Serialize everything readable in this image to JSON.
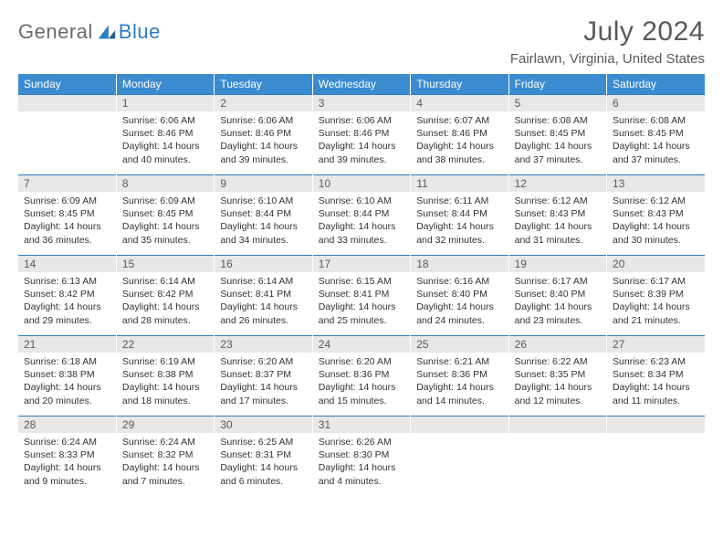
{
  "logo": {
    "general": "General",
    "blue": "Blue"
  },
  "title": "July 2024",
  "location": "Fairlawn, Virginia, United States",
  "colors": {
    "header_bg": "#3b8bd0",
    "header_text": "#ffffff",
    "accent": "#2d7cc1",
    "daynum_bg": "#e8e8e8",
    "text": "#333333",
    "title_text": "#5a5a5a"
  },
  "weekdays": [
    "Sunday",
    "Monday",
    "Tuesday",
    "Wednesday",
    "Thursday",
    "Friday",
    "Saturday"
  ],
  "weeks": [
    [
      null,
      {
        "n": "1",
        "sr": "Sunrise: 6:06 AM",
        "ss": "Sunset: 8:46 PM",
        "dl1": "Daylight: 14 hours",
        "dl2": "and 40 minutes."
      },
      {
        "n": "2",
        "sr": "Sunrise: 6:06 AM",
        "ss": "Sunset: 8:46 PM",
        "dl1": "Daylight: 14 hours",
        "dl2": "and 39 minutes."
      },
      {
        "n": "3",
        "sr": "Sunrise: 6:06 AM",
        "ss": "Sunset: 8:46 PM",
        "dl1": "Daylight: 14 hours",
        "dl2": "and 39 minutes."
      },
      {
        "n": "4",
        "sr": "Sunrise: 6:07 AM",
        "ss": "Sunset: 8:46 PM",
        "dl1": "Daylight: 14 hours",
        "dl2": "and 38 minutes."
      },
      {
        "n": "5",
        "sr": "Sunrise: 6:08 AM",
        "ss": "Sunset: 8:45 PM",
        "dl1": "Daylight: 14 hours",
        "dl2": "and 37 minutes."
      },
      {
        "n": "6",
        "sr": "Sunrise: 6:08 AM",
        "ss": "Sunset: 8:45 PM",
        "dl1": "Daylight: 14 hours",
        "dl2": "and 37 minutes."
      }
    ],
    [
      {
        "n": "7",
        "sr": "Sunrise: 6:09 AM",
        "ss": "Sunset: 8:45 PM",
        "dl1": "Daylight: 14 hours",
        "dl2": "and 36 minutes."
      },
      {
        "n": "8",
        "sr": "Sunrise: 6:09 AM",
        "ss": "Sunset: 8:45 PM",
        "dl1": "Daylight: 14 hours",
        "dl2": "and 35 minutes."
      },
      {
        "n": "9",
        "sr": "Sunrise: 6:10 AM",
        "ss": "Sunset: 8:44 PM",
        "dl1": "Daylight: 14 hours",
        "dl2": "and 34 minutes."
      },
      {
        "n": "10",
        "sr": "Sunrise: 6:10 AM",
        "ss": "Sunset: 8:44 PM",
        "dl1": "Daylight: 14 hours",
        "dl2": "and 33 minutes."
      },
      {
        "n": "11",
        "sr": "Sunrise: 6:11 AM",
        "ss": "Sunset: 8:44 PM",
        "dl1": "Daylight: 14 hours",
        "dl2": "and 32 minutes."
      },
      {
        "n": "12",
        "sr": "Sunrise: 6:12 AM",
        "ss": "Sunset: 8:43 PM",
        "dl1": "Daylight: 14 hours",
        "dl2": "and 31 minutes."
      },
      {
        "n": "13",
        "sr": "Sunrise: 6:12 AM",
        "ss": "Sunset: 8:43 PM",
        "dl1": "Daylight: 14 hours",
        "dl2": "and 30 minutes."
      }
    ],
    [
      {
        "n": "14",
        "sr": "Sunrise: 6:13 AM",
        "ss": "Sunset: 8:42 PM",
        "dl1": "Daylight: 14 hours",
        "dl2": "and 29 minutes."
      },
      {
        "n": "15",
        "sr": "Sunrise: 6:14 AM",
        "ss": "Sunset: 8:42 PM",
        "dl1": "Daylight: 14 hours",
        "dl2": "and 28 minutes."
      },
      {
        "n": "16",
        "sr": "Sunrise: 6:14 AM",
        "ss": "Sunset: 8:41 PM",
        "dl1": "Daylight: 14 hours",
        "dl2": "and 26 minutes."
      },
      {
        "n": "17",
        "sr": "Sunrise: 6:15 AM",
        "ss": "Sunset: 8:41 PM",
        "dl1": "Daylight: 14 hours",
        "dl2": "and 25 minutes."
      },
      {
        "n": "18",
        "sr": "Sunrise: 6:16 AM",
        "ss": "Sunset: 8:40 PM",
        "dl1": "Daylight: 14 hours",
        "dl2": "and 24 minutes."
      },
      {
        "n": "19",
        "sr": "Sunrise: 6:17 AM",
        "ss": "Sunset: 8:40 PM",
        "dl1": "Daylight: 14 hours",
        "dl2": "and 23 minutes."
      },
      {
        "n": "20",
        "sr": "Sunrise: 6:17 AM",
        "ss": "Sunset: 8:39 PM",
        "dl1": "Daylight: 14 hours",
        "dl2": "and 21 minutes."
      }
    ],
    [
      {
        "n": "21",
        "sr": "Sunrise: 6:18 AM",
        "ss": "Sunset: 8:38 PM",
        "dl1": "Daylight: 14 hours",
        "dl2": "and 20 minutes."
      },
      {
        "n": "22",
        "sr": "Sunrise: 6:19 AM",
        "ss": "Sunset: 8:38 PM",
        "dl1": "Daylight: 14 hours",
        "dl2": "and 18 minutes."
      },
      {
        "n": "23",
        "sr": "Sunrise: 6:20 AM",
        "ss": "Sunset: 8:37 PM",
        "dl1": "Daylight: 14 hours",
        "dl2": "and 17 minutes."
      },
      {
        "n": "24",
        "sr": "Sunrise: 6:20 AM",
        "ss": "Sunset: 8:36 PM",
        "dl1": "Daylight: 14 hours",
        "dl2": "and 15 minutes."
      },
      {
        "n": "25",
        "sr": "Sunrise: 6:21 AM",
        "ss": "Sunset: 8:36 PM",
        "dl1": "Daylight: 14 hours",
        "dl2": "and 14 minutes."
      },
      {
        "n": "26",
        "sr": "Sunrise: 6:22 AM",
        "ss": "Sunset: 8:35 PM",
        "dl1": "Daylight: 14 hours",
        "dl2": "and 12 minutes."
      },
      {
        "n": "27",
        "sr": "Sunrise: 6:23 AM",
        "ss": "Sunset: 8:34 PM",
        "dl1": "Daylight: 14 hours",
        "dl2": "and 11 minutes."
      }
    ],
    [
      {
        "n": "28",
        "sr": "Sunrise: 6:24 AM",
        "ss": "Sunset: 8:33 PM",
        "dl1": "Daylight: 14 hours",
        "dl2": "and 9 minutes."
      },
      {
        "n": "29",
        "sr": "Sunrise: 6:24 AM",
        "ss": "Sunset: 8:32 PM",
        "dl1": "Daylight: 14 hours",
        "dl2": "and 7 minutes."
      },
      {
        "n": "30",
        "sr": "Sunrise: 6:25 AM",
        "ss": "Sunset: 8:31 PM",
        "dl1": "Daylight: 14 hours",
        "dl2": "and 6 minutes."
      },
      {
        "n": "31",
        "sr": "Sunrise: 6:26 AM",
        "ss": "Sunset: 8:30 PM",
        "dl1": "Daylight: 14 hours",
        "dl2": "and 4 minutes."
      },
      null,
      null,
      null
    ]
  ]
}
